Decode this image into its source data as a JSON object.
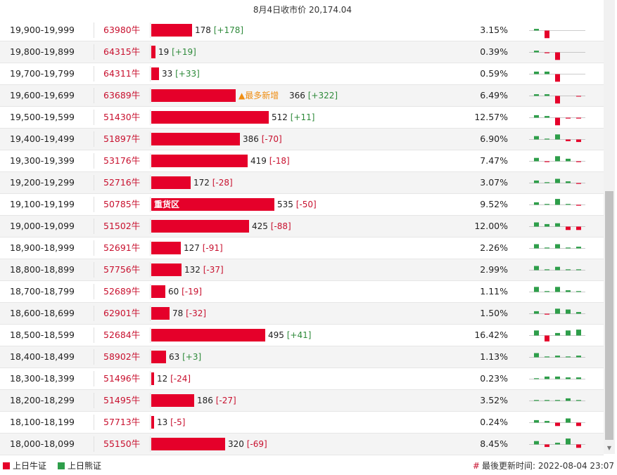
{
  "header": {
    "title": "8月4日收市价 20,174.04"
  },
  "max_volume": 535,
  "colors": {
    "bull": "#e5002a",
    "bear": "#2e9e4a",
    "code": "#c8102e",
    "tag": "#ef8d12"
  },
  "rows": [
    {
      "range": "19,900-19,999",
      "code": "63980牛",
      "volume": "178",
      "change": "[+178]",
      "dir": "up",
      "pct": "3.15%",
      "spark": [
        0.2,
        -0.9,
        0,
        0,
        0,
        0.3
      ],
      "tag": "",
      "label": ""
    },
    {
      "range": "19,800-19,899",
      "code": "64315牛",
      "volume": "19",
      "change": "[+19]",
      "dir": "up",
      "pct": "0.39%",
      "spark": [
        0.2,
        -0.1,
        -0.9,
        0,
        0,
        -0.1
      ],
      "tag": "",
      "label": ""
    },
    {
      "range": "19,700-19,799",
      "code": "64311牛",
      "volume": "33",
      "change": "[+33]",
      "dir": "up",
      "pct": "0.59%",
      "spark": [
        0.3,
        0.3,
        -0.9,
        0,
        0,
        0.1
      ],
      "tag": "",
      "label": ""
    },
    {
      "range": "19,600-19,699",
      "code": "63689牛",
      "volume": "366",
      "change": "[+322]",
      "dir": "up",
      "pct": "6.49%",
      "spark": [
        0.2,
        0.2,
        -0.9,
        0,
        -0.05,
        0.2
      ],
      "tag": "▲最多新增",
      "label": ""
    },
    {
      "range": "19,500-19,599",
      "code": "51430牛",
      "volume": "512",
      "change": "[+11]",
      "dir": "up",
      "pct": "12.57%",
      "spark": [
        0.3,
        0.2,
        -0.9,
        -0.1,
        -0.1,
        -0.1
      ],
      "tag": "",
      "label": ""
    },
    {
      "range": "19,400-19,499",
      "code": "51897牛",
      "volume": "386",
      "change": "[-70]",
      "dir": "dn",
      "pct": "6.90%",
      "spark": [
        0.4,
        0.1,
        0.6,
        -0.2,
        -0.3,
        -0.3
      ],
      "tag": "",
      "label": ""
    },
    {
      "range": "19,300-19,399",
      "code": "53176牛",
      "volume": "419",
      "change": "[-18]",
      "dir": "dn",
      "pct": "7.47%",
      "spark": [
        0.4,
        -0.1,
        0.6,
        0.3,
        -0.1,
        -0.1
      ],
      "tag": "",
      "label": ""
    },
    {
      "range": "19,200-19,299",
      "code": "52716牛",
      "volume": "172",
      "change": "[-28]",
      "dir": "dn",
      "pct": "3.07%",
      "spark": [
        0.3,
        0.1,
        0.5,
        0.2,
        -0.1,
        -0.3
      ],
      "tag": "",
      "label": ""
    },
    {
      "range": "19,100-19,199",
      "code": "50785牛",
      "volume": "535",
      "change": "[-50]",
      "dir": "dn",
      "pct": "9.52%",
      "spark": [
        0.3,
        0.1,
        0.7,
        0.1,
        -0.1,
        -0.1
      ],
      "tag": "",
      "label": "重货区"
    },
    {
      "range": "19,000-19,099",
      "code": "51502牛",
      "volume": "425",
      "change": "[-88]",
      "dir": "dn",
      "pct": "12.00%",
      "spark": [
        0.5,
        0.3,
        0.4,
        -0.4,
        -0.4,
        -0.4
      ],
      "tag": "",
      "label": ""
    },
    {
      "range": "18,900-18,999",
      "code": "52691牛",
      "volume": "127",
      "change": "[-91]",
      "dir": "dn",
      "pct": "2.26%",
      "spark": [
        0.5,
        0.1,
        0.5,
        0.1,
        0.2,
        -0.6
      ],
      "tag": "",
      "label": ""
    },
    {
      "range": "18,800-18,899",
      "code": "57756牛",
      "volume": "132",
      "change": "[-37]",
      "dir": "dn",
      "pct": "2.99%",
      "spark": [
        0.5,
        0.1,
        0.4,
        0.1,
        0.1,
        -0.4
      ],
      "tag": "",
      "label": ""
    },
    {
      "range": "18,700-18,799",
      "code": "52689牛",
      "volume": "60",
      "change": "[-19]",
      "dir": "dn",
      "pct": "1.11%",
      "spark": [
        0.6,
        0.1,
        0.6,
        0.2,
        0.1,
        -0.2
      ],
      "tag": "",
      "label": ""
    },
    {
      "range": "18,600-18,699",
      "code": "62901牛",
      "volume": "78",
      "change": "[-32]",
      "dir": "dn",
      "pct": "1.50%",
      "spark": [
        0.3,
        -0.1,
        0.6,
        0.5,
        0.2,
        -0.5
      ],
      "tag": "",
      "label": ""
    },
    {
      "range": "18,500-18,599",
      "code": "52684牛",
      "volume": "495",
      "change": "[+41]",
      "dir": "up",
      "pct": "16.42%",
      "spark": [
        0.6,
        -0.7,
        0.3,
        0.6,
        0.7,
        0.4
      ],
      "tag": "",
      "label": ""
    },
    {
      "range": "18,400-18,499",
      "code": "58902牛",
      "volume": "63",
      "change": "[+3]",
      "dir": "up",
      "pct": "1.13%",
      "spark": [
        0.5,
        0.1,
        0.2,
        0.1,
        0.2,
        -0.2
      ],
      "tag": "",
      "label": ""
    },
    {
      "range": "18,300-18,399",
      "code": "51496牛",
      "volume": "12",
      "change": "[-24]",
      "dir": "dn",
      "pct": "0.23%",
      "spark": [
        0.1,
        0.3,
        0.3,
        0.2,
        0.2,
        -0.6
      ],
      "tag": "",
      "label": ""
    },
    {
      "range": "18,200-18,299",
      "code": "51495牛",
      "volume": "186",
      "change": "[-27]",
      "dir": "dn",
      "pct": "3.52%",
      "spark": [
        0.1,
        0.1,
        0.1,
        0.3,
        0.1,
        -0.3
      ],
      "tag": "",
      "label": ""
    },
    {
      "range": "18,100-18,199",
      "code": "57713牛",
      "volume": "13",
      "change": "[-5]",
      "dir": "dn",
      "pct": "0.24%",
      "spark": [
        0.3,
        0.2,
        -0.4,
        0.5,
        -0.4,
        0.2
      ],
      "tag": "",
      "label": ""
    },
    {
      "range": "18,000-18,099",
      "code": "55150牛",
      "volume": "320",
      "change": "[-69]",
      "dir": "dn",
      "pct": "8.45%",
      "spark": [
        0.4,
        -0.3,
        0.2,
        0.7,
        -0.4,
        -0.2
      ],
      "tag": "",
      "label": ""
    }
  ],
  "legend": {
    "bull": "上日牛证",
    "bear": "上日熊证"
  },
  "footer": {
    "updated_label": "最後更新时间:",
    "updated_time": "2022-08-04 23:07"
  }
}
